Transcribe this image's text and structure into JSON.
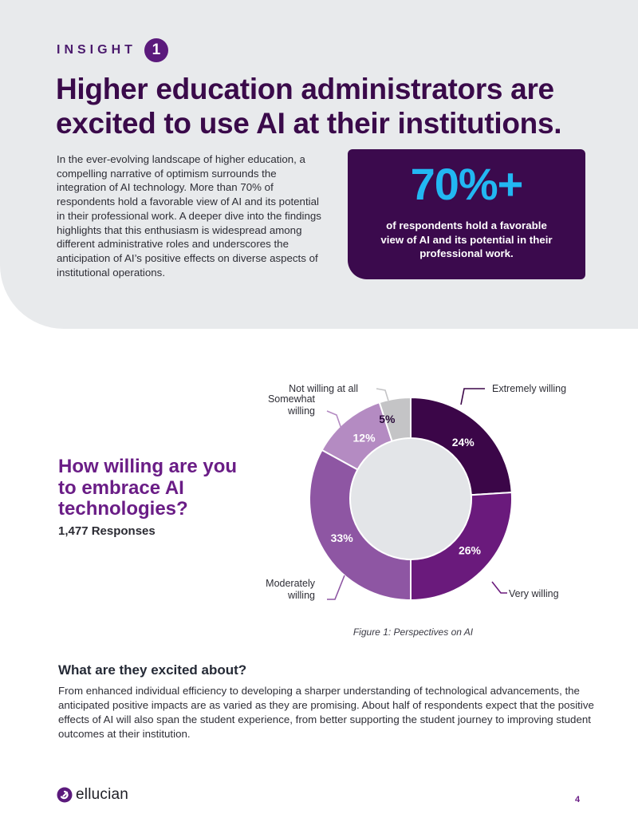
{
  "header": {
    "insight_label": "INSIGHT",
    "insight_number": "1",
    "headline": "Higher education administrators are excited to use AI at their institutions."
  },
  "intro": {
    "text": "In the ever-evolving landscape of higher education, a compelling narrative of optimism surrounds the integration of AI technology. More than 70% of respondents hold a favorable view of AI and its potential in their professional work. A deeper dive into the findings highlights that this enthusiasm is widespread among different administrative roles and underscores the anticipation of AI’s positive effects on diverse aspects of institutional operations."
  },
  "stat_card": {
    "value": "70%+",
    "description": "of respondents hold a favorable view of AI and its potential in their professional work."
  },
  "survey": {
    "question": "How willing are you to embrace AI technologies?",
    "responses": "1,477 Responses"
  },
  "chart_data": {
    "type": "pie",
    "categories": [
      "Extremely willing",
      "Very willing",
      "Moderately willing",
      "Somewhat willing",
      "Not willing at all"
    ],
    "values": [
      24,
      26,
      33,
      12,
      5
    ],
    "value_labels": [
      "24%",
      "26%",
      "33%",
      "12%",
      "5%"
    ],
    "colors": [
      "#3b0648",
      "#6a1a7c",
      "#8e56a3",
      "#b48bc2",
      "#c4c4c6"
    ],
    "label_colors": [
      "#ffffff",
      "#ffffff",
      "#ffffff",
      "#ffffff",
      "#2a0a3a"
    ],
    "caption": "Figure 1: Perspectives on AI"
  },
  "excited": {
    "heading": "What are they excited about?",
    "text": "From enhanced individual efficiency to developing a sharper understanding of technological advancements, the anticipated positive impacts are as varied as they are promising. About half of respondents expect that the positive effects of AI will also span the student experience, from better supporting the student journey to improving student outcomes at their institution."
  },
  "footer": {
    "logo_text": "ellucian",
    "page_number": "4"
  }
}
